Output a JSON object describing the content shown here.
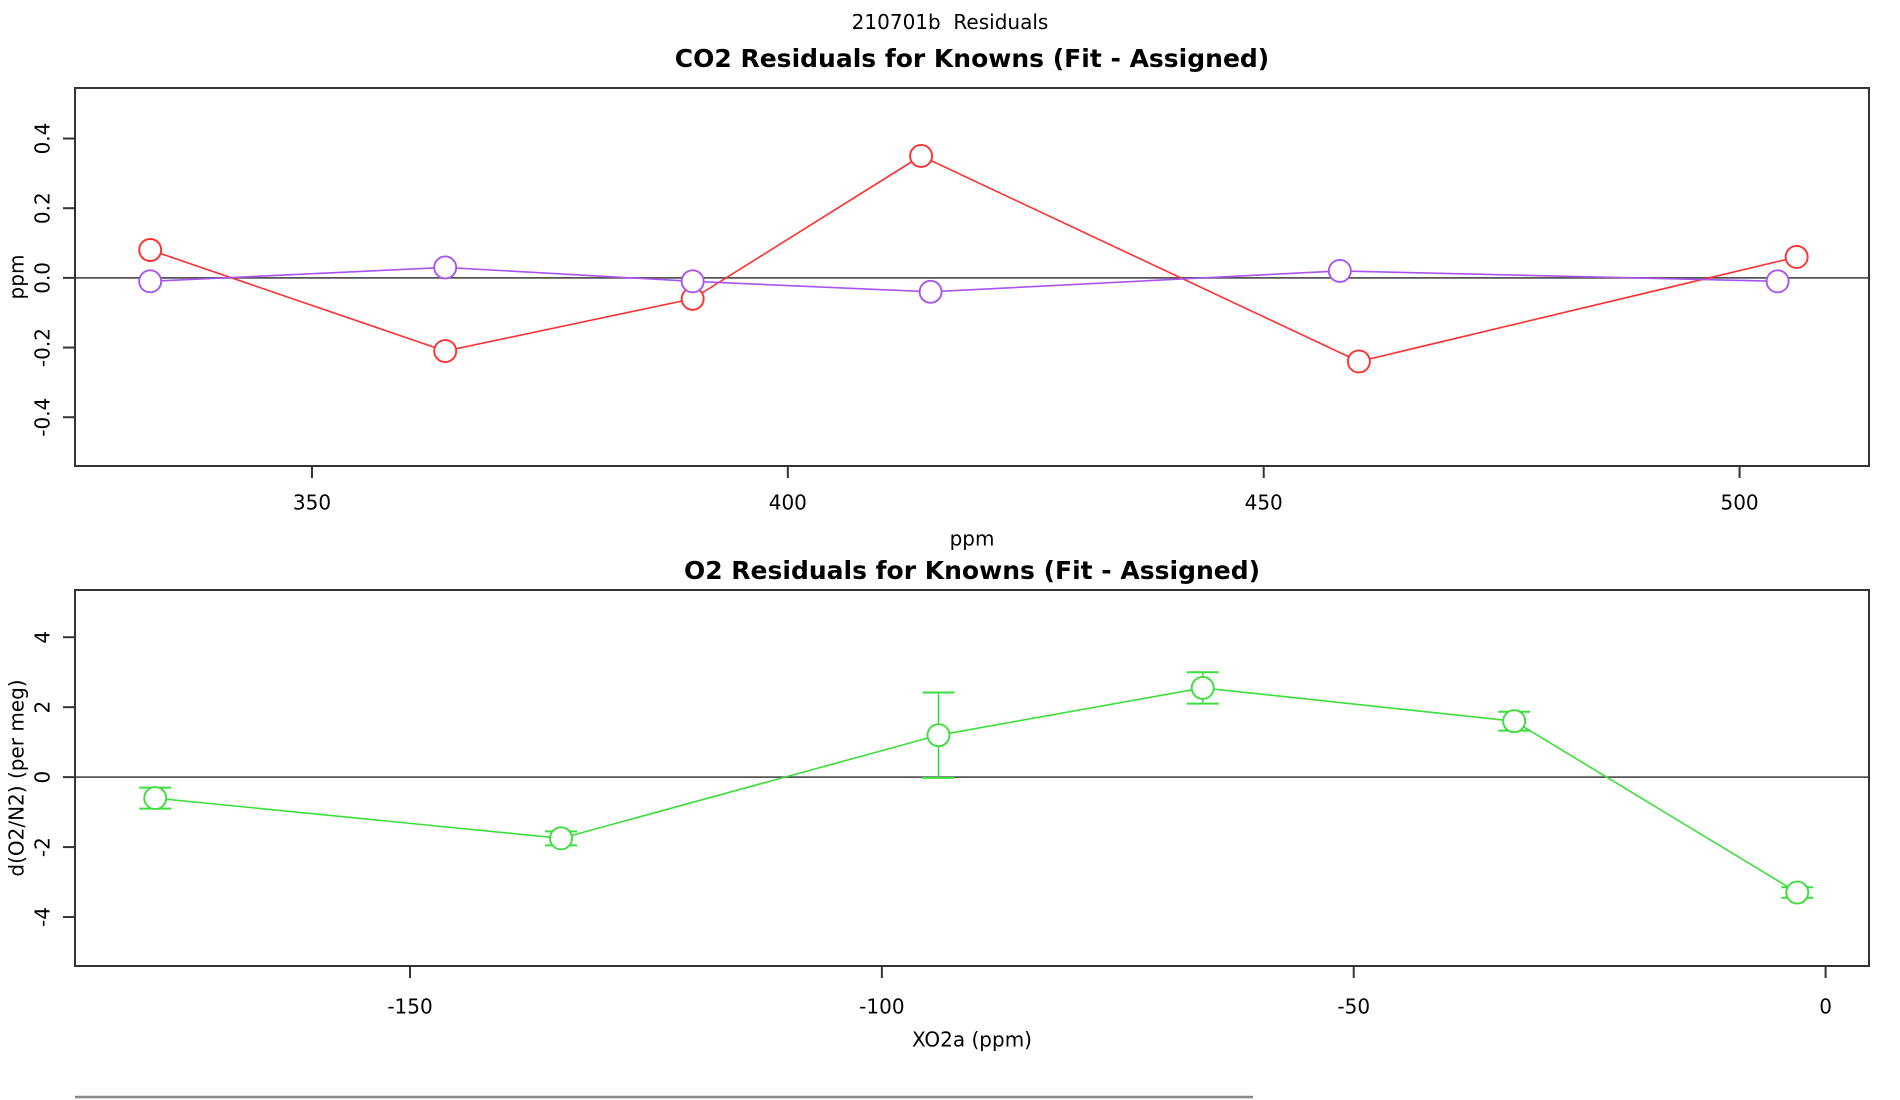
{
  "page": {
    "header_title": "210701b  Residuals"
  },
  "chart_data": [
    {
      "type": "line",
      "title": "CO2 Residuals for Knowns (Fit - Assigned)",
      "xlabel": "ppm",
      "ylabel": "ppm",
      "xlim": [
        325.1,
        513.6
      ],
      "ylim": [
        -0.54,
        0.545
      ],
      "grid": false,
      "legend": "none",
      "zero_line": true,
      "frame_color": "#333333",
      "zero_line_color": "#555555",
      "xticks": {
        "values": [
          350,
          400,
          450,
          500
        ],
        "labels": [
          "350",
          "400",
          "450",
          "500"
        ]
      },
      "yticks": {
        "values": [
          0.4,
          0.2,
          0,
          -0.2,
          -0.4
        ],
        "labels": [
          "0.4",
          "0.2",
          "0.0",
          "-0.2",
          "-0.4"
        ]
      },
      "series": [
        {
          "name": "co2-residuals-red",
          "color": "#FF3030",
          "marker": "open-circle",
          "x": [
            333,
            364,
            390,
            414,
            460,
            506
          ],
          "y": [
            0.08,
            -0.21,
            -0.06,
            0.35,
            -0.24,
            0.06
          ]
        },
        {
          "name": "co2-residuals-purple",
          "color": "#A855F0",
          "marker": "open-circle",
          "x": [
            333,
            364,
            390,
            415,
            458,
            504
          ],
          "y": [
            -0.01,
            0.03,
            -0.01,
            -0.04,
            0.02,
            -0.01
          ]
        }
      ]
    },
    {
      "type": "line",
      "title": "O2 Residuals for Knowns (Fit - Assigned)",
      "xlabel": "XO2a (ppm)",
      "ylabel": "d(O2/N2) (per meg)",
      "xlim": [
        -185.5,
        4.6
      ],
      "ylim": [
        -5.4,
        5.35
      ],
      "grid": false,
      "legend": "none",
      "zero_line": true,
      "frame_color": "#333333",
      "zero_line_color": "#555555",
      "xticks": {
        "values": [
          -150,
          -100,
          -50,
          0
        ],
        "labels": [
          "-150",
          "-100",
          "-50",
          "0"
        ]
      },
      "yticks": {
        "values": [
          4,
          2,
          0,
          -2,
          -4
        ],
        "labels": [
          "4",
          "2",
          "0",
          "-2",
          "-4"
        ]
      },
      "series": [
        {
          "name": "o2-residuals-green",
          "color": "#3CDE3C",
          "marker": "open-circle",
          "x": [
            -177,
            -134,
            -94,
            -66,
            -33,
            -3
          ],
          "y": [
            -0.6,
            -1.75,
            1.2,
            2.55,
            1.6,
            -3.3
          ],
          "yerr": [
            0.3,
            0.2,
            1.22,
            0.45,
            0.27,
            0.15
          ]
        }
      ]
    }
  ]
}
